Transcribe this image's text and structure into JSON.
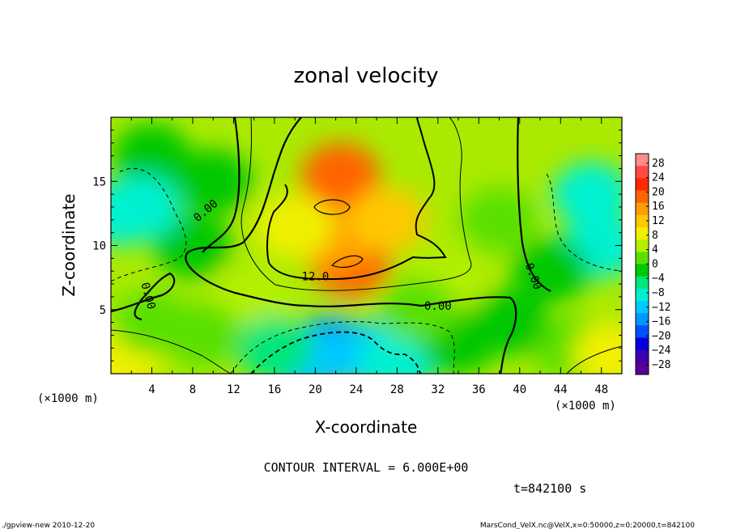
{
  "chart_data": {
    "type": "heatmap",
    "title": "zonal velocity",
    "xlabel": "X-coordinate",
    "ylabel": "Z-coordinate",
    "x_unit": "(×1000 m)",
    "y_unit": "(×1000 m)",
    "xlim": [
      0,
      50
    ],
    "ylim": [
      0,
      20
    ],
    "x_ticks": [
      "4",
      "8",
      "12",
      "16",
      "20",
      "24",
      "28",
      "32",
      "36",
      "40",
      "44",
      "48"
    ],
    "x_tick_values": [
      4,
      8,
      12,
      16,
      20,
      24,
      28,
      32,
      36,
      40,
      44,
      48
    ],
    "y_ticks": [
      "5",
      "10",
      "15"
    ],
    "y_tick_values": [
      5,
      10,
      15
    ],
    "colorbar": {
      "labels": [
        "28",
        "24",
        "20",
        "16",
        "12",
        "8",
        "4",
        "0",
        "−4",
        "−8",
        "−12",
        "−16",
        "−20",
        "−24",
        "−28"
      ],
      "values": [
        28,
        24,
        20,
        16,
        12,
        8,
        4,
        0,
        -4,
        -8,
        -12,
        -16,
        -20,
        -24,
        -28
      ],
      "colors": [
        "#ff8c8c",
        "#ff4a46",
        "#ff2a00",
        "#ff6400",
        "#ff9d00",
        "#ffc800",
        "#f0f000",
        "#b4f000",
        "#5ae000",
        "#00c800",
        "#00e67a",
        "#00f0d0",
        "#00c8ff",
        "#0096ff",
        "#0050ff",
        "#0000dc",
        "#3c00b4",
        "#5a0096"
      ]
    },
    "features": [
      {
        "x": 22.5,
        "z": 15.5,
        "value": 17
      },
      {
        "x": 22,
        "z": 13,
        "value": 19
      },
      {
        "x": 23.5,
        "z": 8.5,
        "value": 18
      },
      {
        "x": 22,
        "z": 10.5,
        "value": 14
      },
      {
        "x": 27,
        "z": 12,
        "value": 12
      },
      {
        "x": 18,
        "z": 11.5,
        "value": 8
      },
      {
        "x": 32.5,
        "z": 7,
        "value": 5
      },
      {
        "x": 14,
        "z": 6,
        "value": 4
      },
      {
        "x": 8,
        "z": 10,
        "value": 0
      },
      {
        "x": 10,
        "z": 15,
        "value": 0
      },
      {
        "x": 4,
        "z": 17,
        "value": -3
      },
      {
        "x": 3,
        "z": 13,
        "value": -7
      },
      {
        "x": 1,
        "z": 12.5,
        "value": -9
      },
      {
        "x": 47,
        "z": 14,
        "value": -8
      },
      {
        "x": 48,
        "z": 10,
        "value": -9
      },
      {
        "x": 43,
        "z": 8,
        "value": -3
      },
      {
        "x": 45,
        "z": 2,
        "value": 3
      },
      {
        "x": 49,
        "z": 1.5,
        "value": 9
      },
      {
        "x": 38,
        "z": 12,
        "value": 1
      },
      {
        "x": 39,
        "z": 4,
        "value": -2
      },
      {
        "x": 21.5,
        "z": 2,
        "value": -16
      },
      {
        "x": 19,
        "z": 1,
        "value": -13
      },
      {
        "x": 25,
        "z": 1.5,
        "value": -11
      },
      {
        "x": 28,
        "z": 1,
        "value": -8
      },
      {
        "x": 16,
        "z": 2,
        "value": -6
      },
      {
        "x": 9,
        "z": 3,
        "value": 3
      },
      {
        "x": 1,
        "z": 1,
        "value": 9
      },
      {
        "x": 4,
        "z": 4,
        "value": 1
      },
      {
        "x": 34,
        "z": 2.5,
        "value": -2
      },
      {
        "x": 30,
        "z": 5,
        "value": 1
      }
    ],
    "contour_labels": [
      {
        "text": "0.00",
        "x": 9.5,
        "z": 12.5,
        "rotate": -40
      },
      {
        "text": "12.0",
        "x": 20,
        "z": 7.3,
        "rotate": 0
      },
      {
        "text": "0.00",
        "x": 32,
        "z": 5,
        "rotate": 0
      },
      {
        "text": "0.00",
        "x": 41,
        "z": 7.5,
        "rotate": 70
      },
      {
        "text": "0.00",
        "x": 3.3,
        "z": 6,
        "rotate": 75
      }
    ],
    "contour_interval_label": "CONTOUR INTERVAL = 6.000E+00",
    "time_label": "t=842100 s",
    "footer_left": "./gpview-new  2010-12-20",
    "footer_right": "MarsCond_VelX.nc@VelX,x=0:50000,z=0:20000,t=842100"
  }
}
